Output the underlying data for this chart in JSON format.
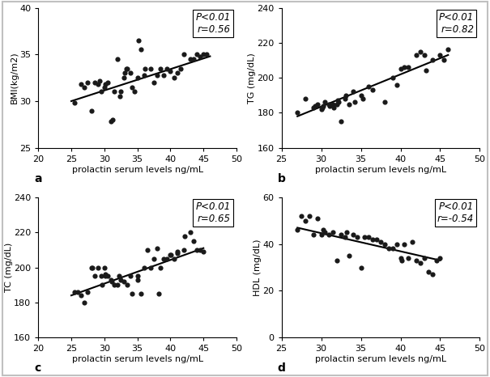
{
  "panels": [
    {
      "label": "a",
      "xlabel": "prolactin serum levels ng/mL",
      "ylabel": "BMI(kg/m2)",
      "xlim": [
        20,
        50
      ],
      "ylim": [
        25,
        40
      ],
      "xticks": [
        20,
        25,
        30,
        35,
        40,
        45,
        50
      ],
      "yticks": [
        25,
        30,
        35,
        40
      ],
      "ann_line1": "P<0.01",
      "ann_line2": "r=0.56",
      "scatter_x": [
        25.5,
        26.5,
        27,
        27.5,
        28,
        28.5,
        29,
        29.3,
        29.5,
        30,
        30.2,
        30.5,
        31,
        31.2,
        31.5,
        32,
        32.3,
        32.5,
        33,
        33.1,
        33.3,
        33.5,
        34,
        34.2,
        34.5,
        35,
        35.2,
        35.5,
        36,
        36.2,
        37,
        37.5,
        38,
        38.5,
        39,
        39.5,
        40,
        40.5,
        41,
        41.5,
        42,
        43,
        43.5,
        44,
        44.5,
        45,
        45.5
      ],
      "scatter_y": [
        29.8,
        31.8,
        31.5,
        32.0,
        29.0,
        32.0,
        31.8,
        32.2,
        31.0,
        31.5,
        31.8,
        32.0,
        27.8,
        28.0,
        31.0,
        34.5,
        30.5,
        31.0,
        32.5,
        33.0,
        33.5,
        33.5,
        33.0,
        31.5,
        31.0,
        32.5,
        36.5,
        35.5,
        32.8,
        33.5,
        33.5,
        32.0,
        32.8,
        33.5,
        32.8,
        33.5,
        33.2,
        32.5,
        33.0,
        33.5,
        35.0,
        34.5,
        34.5,
        35.0,
        34.8,
        35.0,
        35.0
      ],
      "trendline_x": [
        25,
        46
      ],
      "trendline_y": [
        30.0,
        34.8
      ]
    },
    {
      "label": "b",
      "xlabel": "prolactin serum levels ng/mL",
      "ylabel": "TG (mg/dL)",
      "xlim": [
        25,
        50
      ],
      "ylim": [
        160,
        240
      ],
      "xticks": [
        25,
        30,
        35,
        40,
        45,
        50
      ],
      "yticks": [
        160,
        180,
        200,
        220,
        240
      ],
      "ann_line1": "P<0.01",
      "ann_line2": "r=0.82",
      "scatter_x": [
        27,
        28,
        29,
        29.2,
        29.5,
        30,
        30.1,
        30.2,
        30.5,
        31,
        31.1,
        31.5,
        31.6,
        32,
        32.1,
        32.2,
        32.5,
        33,
        33.1,
        33.5,
        34,
        34.2,
        35,
        35.2,
        36,
        36.5,
        38,
        39,
        39.5,
        40,
        40.5,
        41,
        42,
        42.5,
        43,
        43.2,
        44,
        45,
        45.5,
        46
      ],
      "scatter_y": [
        180,
        188,
        183,
        184,
        185,
        182,
        183,
        184,
        186,
        185,
        184,
        185,
        183,
        185,
        187,
        186,
        175,
        188,
        190,
        185,
        192,
        186,
        190,
        188,
        195,
        193,
        186,
        200,
        196,
        205,
        206,
        206,
        213,
        215,
        213,
        204,
        210,
        213,
        210,
        216
      ],
      "trendline_x": [
        27,
        46
      ],
      "trendline_y": [
        178,
        213
      ]
    },
    {
      "label": "c",
      "xlabel": "prolactin serum levels ng/mL",
      "ylabel": "TC (mg/dL)",
      "xlim": [
        20,
        50
      ],
      "ylim": [
        160,
        240
      ],
      "xticks": [
        20,
        25,
        30,
        35,
        40,
        45,
        50
      ],
      "yticks": [
        160,
        180,
        200,
        220,
        240
      ],
      "ann_line1": "P<0.01",
      "ann_line2": "r=0.65",
      "scatter_x": [
        25.5,
        26,
        26.5,
        27,
        27.5,
        28,
        28.2,
        28.5,
        29,
        29.5,
        29.6,
        30,
        30.1,
        30.2,
        30.5,
        31,
        31.1,
        31.5,
        32,
        32.2,
        32.5,
        33,
        33.5,
        34,
        34.2,
        35,
        35.1,
        35.5,
        36,
        36.5,
        37,
        37.5,
        38,
        38.2,
        38.5,
        39,
        39.5,
        40,
        40.1,
        40.5,
        41,
        41.1,
        42,
        42.1,
        43,
        43.5,
        44,
        44.5,
        45
      ],
      "scatter_y": [
        186,
        186,
        184,
        180,
        186,
        200,
        200,
        195,
        200,
        195,
        190,
        200,
        196,
        195,
        195,
        193,
        192,
        190,
        190,
        195,
        193,
        192,
        190,
        195,
        185,
        193,
        195,
        185,
        200,
        210,
        200,
        205,
        211,
        185,
        200,
        205,
        205,
        207,
        207,
        205,
        209,
        208,
        210,
        218,
        220,
        215,
        210,
        210,
        209
      ],
      "trendline_x": [
        25,
        45
      ],
      "trendline_y": [
        184,
        211
      ]
    },
    {
      "label": "d",
      "xlabel": "prolactin serum levels ng/mL",
      "ylabel": "HDL (mg/dL)",
      "xlim": [
        25,
        50
      ],
      "ylim": [
        0,
        60
      ],
      "xticks": [
        25,
        30,
        35,
        40,
        45,
        50
      ],
      "yticks": [
        0,
        20,
        40,
        60
      ],
      "ann_line1": "P<0.01",
      "ann_line2": "r=-0.54",
      "scatter_x": [
        27,
        27.5,
        28,
        28.5,
        29,
        29.5,
        30,
        30.2,
        30.5,
        31,
        31.5,
        32,
        32.5,
        33,
        33.2,
        33.5,
        34,
        34.5,
        35,
        35.5,
        36,
        36.5,
        37,
        37.5,
        38,
        38.5,
        39,
        39.5,
        40,
        40.2,
        40.5,
        41,
        41.5,
        42,
        42.5,
        43,
        43.5,
        44,
        44.5,
        45
      ],
      "scatter_y": [
        46,
        52,
        50,
        52,
        44,
        51,
        44,
        46,
        45,
        44,
        45,
        33,
        44,
        43,
        45,
        35,
        44,
        43,
        30,
        43,
        43,
        42,
        42,
        41,
        40,
        38,
        38,
        40,
        34,
        33,
        40,
        34,
        41,
        33,
        32,
        34,
        28,
        27,
        33,
        34
      ],
      "trendline_x": [
        27,
        45
      ],
      "trendline_y": [
        47,
        33
      ]
    }
  ],
  "dot_color": "#1a1a1a",
  "dot_size": 20,
  "line_color": "#000000",
  "line_width": 1.5,
  "bg_color": "#ffffff",
  "annotation_fontsize": 8.5,
  "axis_label_fontsize": 8,
  "tick_fontsize": 8,
  "outer_border_color": "#c0c0c0",
  "outer_border_lw": 1.5
}
